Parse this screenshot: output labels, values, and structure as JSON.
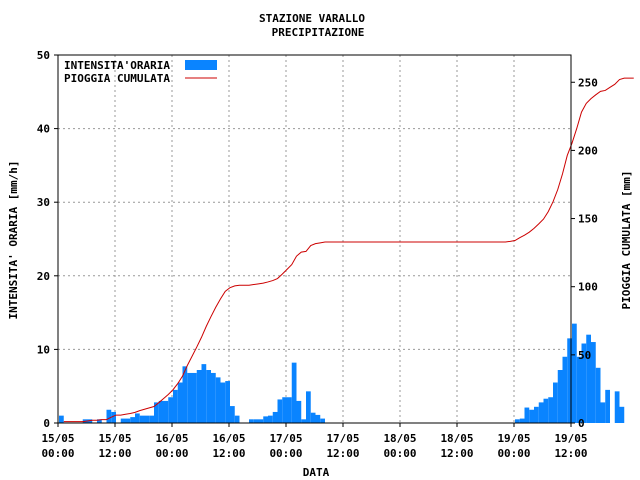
{
  "chart_data": {
    "type": "bar+line",
    "title": "STAZIONE VARALLO",
    "subtitle": "PRECIPITAZIONE",
    "xlabel": "DATA",
    "ylabel_left": "INTENSITA' ORARIA [mm/h]",
    "ylabel_right": "PIOGGIA CUMULATA [mm]",
    "ylim_left": [
      0,
      50
    ],
    "ylim_right": [
      0,
      270
    ],
    "yticks_left": [
      "0",
      "10",
      "20",
      "30",
      "40",
      "50"
    ],
    "yticks_right": [
      "0",
      "50",
      "100",
      "150",
      "200",
      "250"
    ],
    "x_ticks": [
      {
        "line1": "15/05",
        "line2": "00:00"
      },
      {
        "line1": "15/05",
        "line2": "12:00"
      },
      {
        "line1": "16/05",
        "line2": "00:00"
      },
      {
        "line1": "16/05",
        "line2": "12:00"
      },
      {
        "line1": "17/05",
        "line2": "00:00"
      },
      {
        "line1": "17/05",
        "line2": "12:00"
      },
      {
        "line1": "18/05",
        "line2": "00:00"
      },
      {
        "line1": "18/05",
        "line2": "12:00"
      },
      {
        "line1": "19/05",
        "line2": "00:00"
      },
      {
        "line1": "19/05",
        "line2": "12:00"
      }
    ],
    "x_start": "15/05 00:00",
    "x_step_hours": 1,
    "grid": true,
    "legend_position": "top-left",
    "series": [
      {
        "name": "INTENSITA'ORARIA",
        "kind": "bar",
        "color": "#0a84ff",
        "values": [
          1,
          0,
          0,
          0,
          0,
          0.5,
          0.5,
          0,
          0.5,
          0,
          1.8,
          1.5,
          0,
          0.6,
          0.6,
          0.8,
          1.3,
          1,
          1,
          1,
          2.8,
          3,
          3,
          3.5,
          4.5,
          5.5,
          7.7,
          6.8,
          6.8,
          7.2,
          8,
          7.2,
          6.8,
          6.2,
          5.5,
          5.7,
          2.3,
          1,
          0,
          0,
          0.5,
          0.5,
          0.5,
          0.9,
          1,
          1.5,
          3.2,
          3.5,
          3.5,
          8.2,
          3,
          0.5,
          4.3,
          1.4,
          1.1,
          0.6,
          0,
          0,
          0,
          0,
          0,
          0,
          0,
          0,
          0,
          0,
          0,
          0,
          0,
          0,
          0,
          0,
          0,
          0,
          0,
          0,
          0,
          0,
          0,
          0,
          0,
          0,
          0,
          0,
          0,
          0,
          0,
          0,
          0,
          0,
          0,
          0,
          0,
          0,
          0,
          0,
          0.5,
          0.6,
          2.1,
          1.8,
          2.2,
          2.8,
          3.3,
          3.5,
          5.5,
          7.2,
          9,
          11.5,
          13.5,
          9,
          10.8,
          12,
          11,
          7.5,
          2.8,
          4.5,
          0,
          4.3,
          2.2,
          0,
          0
        ]
      },
      {
        "name": "PIOGGIA CUMULATA",
        "kind": "line",
        "color": "#cc0000",
        "values": [
          1,
          1,
          1,
          1,
          1,
          1.5,
          2,
          2,
          2.5,
          2.5,
          4.3,
          5.8,
          5.8,
          6.4,
          7,
          7.8,
          9.1,
          10.1,
          11.1,
          12.1,
          14.9,
          17.9,
          20.9,
          24.4,
          28.9,
          34.4,
          42.1,
          48.9,
          55.7,
          62.9,
          70.9,
          78.1,
          84.9,
          91.1,
          96.6,
          99.3,
          100.6,
          101.1,
          101.1,
          101.1,
          101.6,
          102.1,
          102.6,
          103.5,
          104.5,
          106,
          109.2,
          112.7,
          116.2,
          122.4,
          125.4,
          125.9,
          130.2,
          131.6,
          132.2,
          132.8,
          132.8,
          132.8,
          132.8,
          132.8,
          132.8,
          132.8,
          132.8,
          132.8,
          132.8,
          132.8,
          132.8,
          132.8,
          132.8,
          132.8,
          132.8,
          132.8,
          132.8,
          132.8,
          132.8,
          132.8,
          132.8,
          132.8,
          132.8,
          132.8,
          132.8,
          132.8,
          132.8,
          132.8,
          132.8,
          132.8,
          132.8,
          132.8,
          132.8,
          132.8,
          132.8,
          132.8,
          132.8,
          132.8,
          133.3,
          133.9,
          136,
          137.8,
          140,
          142.8,
          146.1,
          149.6,
          155.1,
          162.3,
          171.3,
          182.8,
          196.3,
          205.3,
          216.1,
          228.1,
          234.5,
          238,
          240.8,
          243.3,
          244,
          246.3,
          248.5,
          252,
          253,
          253,
          253
        ]
      }
    ]
  }
}
